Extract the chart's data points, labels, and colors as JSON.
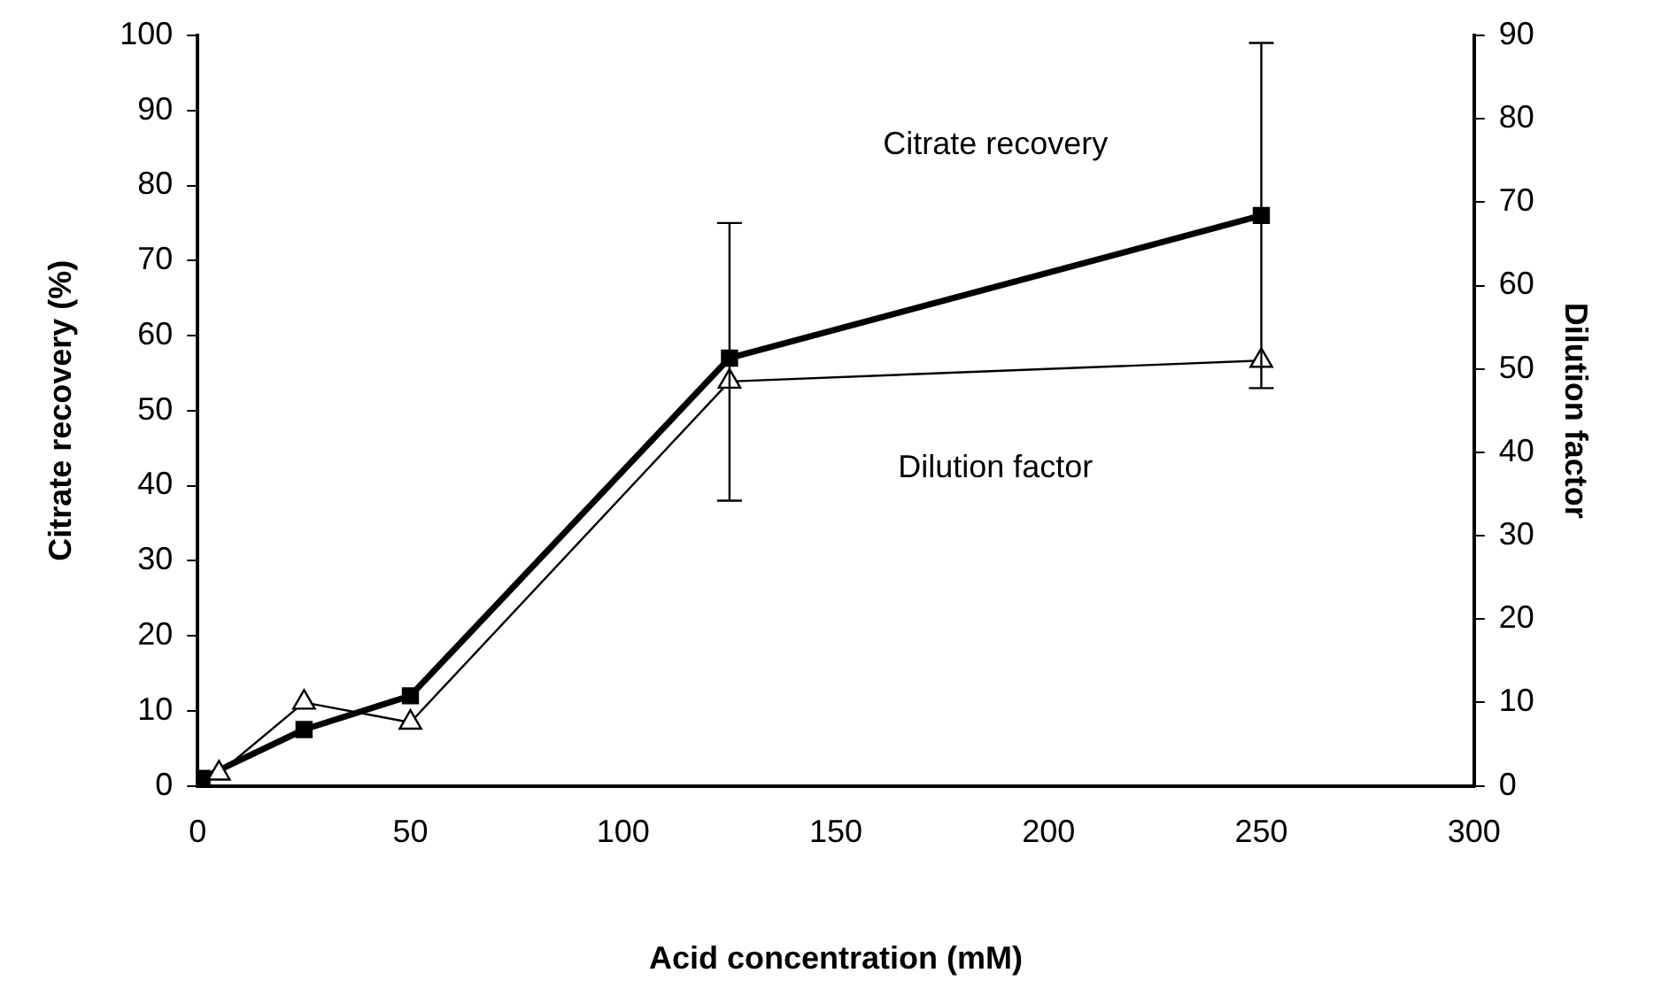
{
  "chart_data": {
    "type": "line",
    "xlabel": "Acid concentration (mM)",
    "ylabel": "Citrate recovery (%)",
    "y2label": "Dilution factor",
    "series": [
      {
        "name": "Citrate recovery",
        "color": "#000000",
        "marker": "square",
        "x": [
          1,
          25,
          50,
          125,
          250
        ],
        "values": [
          1,
          7.5,
          12,
          57,
          76
        ],
        "errors": [
          null,
          null,
          null,
          [
            38,
            75
          ],
          [
            53,
            99
          ]
        ]
      },
      {
        "name": "Dilution factor",
        "color": "#000000",
        "marker": "triangle",
        "axis": "y2",
        "x": [
          5,
          25,
          50,
          125,
          250
        ],
        "values": [
          1.5,
          10,
          7.6,
          48.5,
          51
        ]
      }
    ],
    "xlim": [
      0,
      300
    ],
    "xticks": [
      0,
      50,
      100,
      150,
      200,
      250,
      300
    ],
    "ylim": [
      0,
      100
    ],
    "yticks": [
      0,
      10,
      20,
      30,
      40,
      50,
      60,
      70,
      80,
      90,
      100
    ],
    "y2lim": [
      0,
      90
    ],
    "y2ticks": [
      0,
      10,
      20,
      30,
      40,
      50,
      60,
      70,
      80,
      90
    ],
    "grid": false,
    "legend": false,
    "line_style": "solid"
  }
}
